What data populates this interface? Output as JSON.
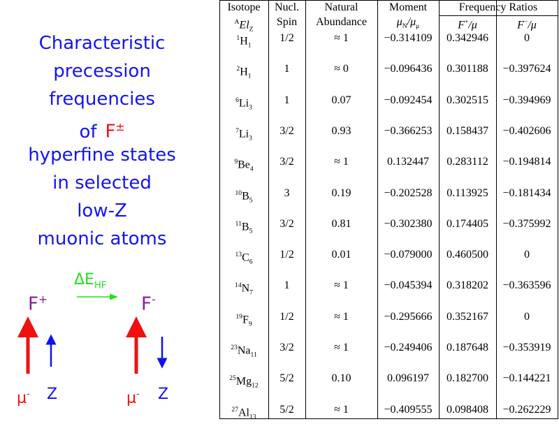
{
  "title": {
    "lines": [
      "Characteristic",
      "precession",
      "frequencies"
    ],
    "of": "of",
    "particle": "F",
    "particle_sup": "±",
    "lines2": [
      "hyperfine states",
      "in selected",
      "low-Z",
      "muonic atoms"
    ]
  },
  "diagram": {
    "f_plus": "F",
    "f_plus_sup": "+",
    "delta": "ΔE",
    "delta_sub": "HF",
    "f_minus": "F",
    "f_minus_sup": "-",
    "muon": "μ",
    "muon_sup": "-",
    "nucleus": "Z"
  },
  "table": {
    "header": {
      "isotope": "Isotope",
      "el_sup": "A",
      "el": "El",
      "el_sub": "Z",
      "spin1": "Nucl.",
      "spin2": "Spin",
      "ab1": "Natural",
      "ab2": "Abundance",
      "moment": "Moment",
      "mu_num": "μ",
      "mu_num_sub": "N",
      "mu_den": "/μ",
      "mu_den_sub": "μ",
      "freq": "Frequency Ratios",
      "fp": "F",
      "fp_sup": "+",
      "fp_den": "/μ",
      "fm": "F",
      "fm_sup": "−",
      "fm_den": "/μ"
    },
    "rows": [
      [
        "1",
        "H",
        "1",
        "1/2",
        "≈ 1",
        "−0.314109",
        "0.342946",
        "0"
      ],
      [
        "2",
        "H",
        "1",
        "1",
        "≈ 0",
        "−0.096436",
        "0.301188",
        "−0.397624"
      ],
      [
        "6",
        "Li",
        "3",
        "1",
        "0.07",
        "−0.092454",
        "0.302515",
        "−0.394969"
      ],
      [
        "7",
        "Li",
        "3",
        "3/2",
        "0.93",
        "−0.366253",
        "0.158437",
        "−0.402606"
      ],
      [
        "9",
        "Be",
        "4",
        "3/2",
        "≈ 1",
        "0.132447",
        "0.283112",
        "−0.194814"
      ],
      [
        "10",
        "B",
        "5",
        "3",
        "0.19",
        "−0.202528",
        "0.113925",
        "−0.181434"
      ],
      [
        "11",
        "B",
        "5",
        "3/2",
        "0.81",
        "−0.302380",
        "0.174405",
        "−0.375992"
      ],
      [
        "13",
        "C",
        "6",
        "1/2",
        "0.01",
        "−0.079000",
        "0.460500",
        "0"
      ],
      [
        "14",
        "N",
        "7",
        "1",
        "≈ 1",
        "−0.045394",
        "0.318202",
        "−0.363596"
      ],
      [
        "19",
        "F",
        "9",
        "1/2",
        "≈ 1",
        "−0.295666",
        "0.352167",
        "0"
      ],
      [
        "23",
        "Na",
        "11",
        "3/2",
        "≈ 1",
        "−0.249406",
        "0.187648",
        "−0.353919"
      ],
      [
        "25",
        "Mg",
        "12",
        "5/2",
        "0.10",
        "0.096197",
        "0.182700",
        "−0.144221"
      ],
      [
        "27",
        "Al",
        "13",
        "5/2",
        "≈ 1",
        "−0.409555",
        "0.098408",
        "−0.262229"
      ]
    ]
  }
}
